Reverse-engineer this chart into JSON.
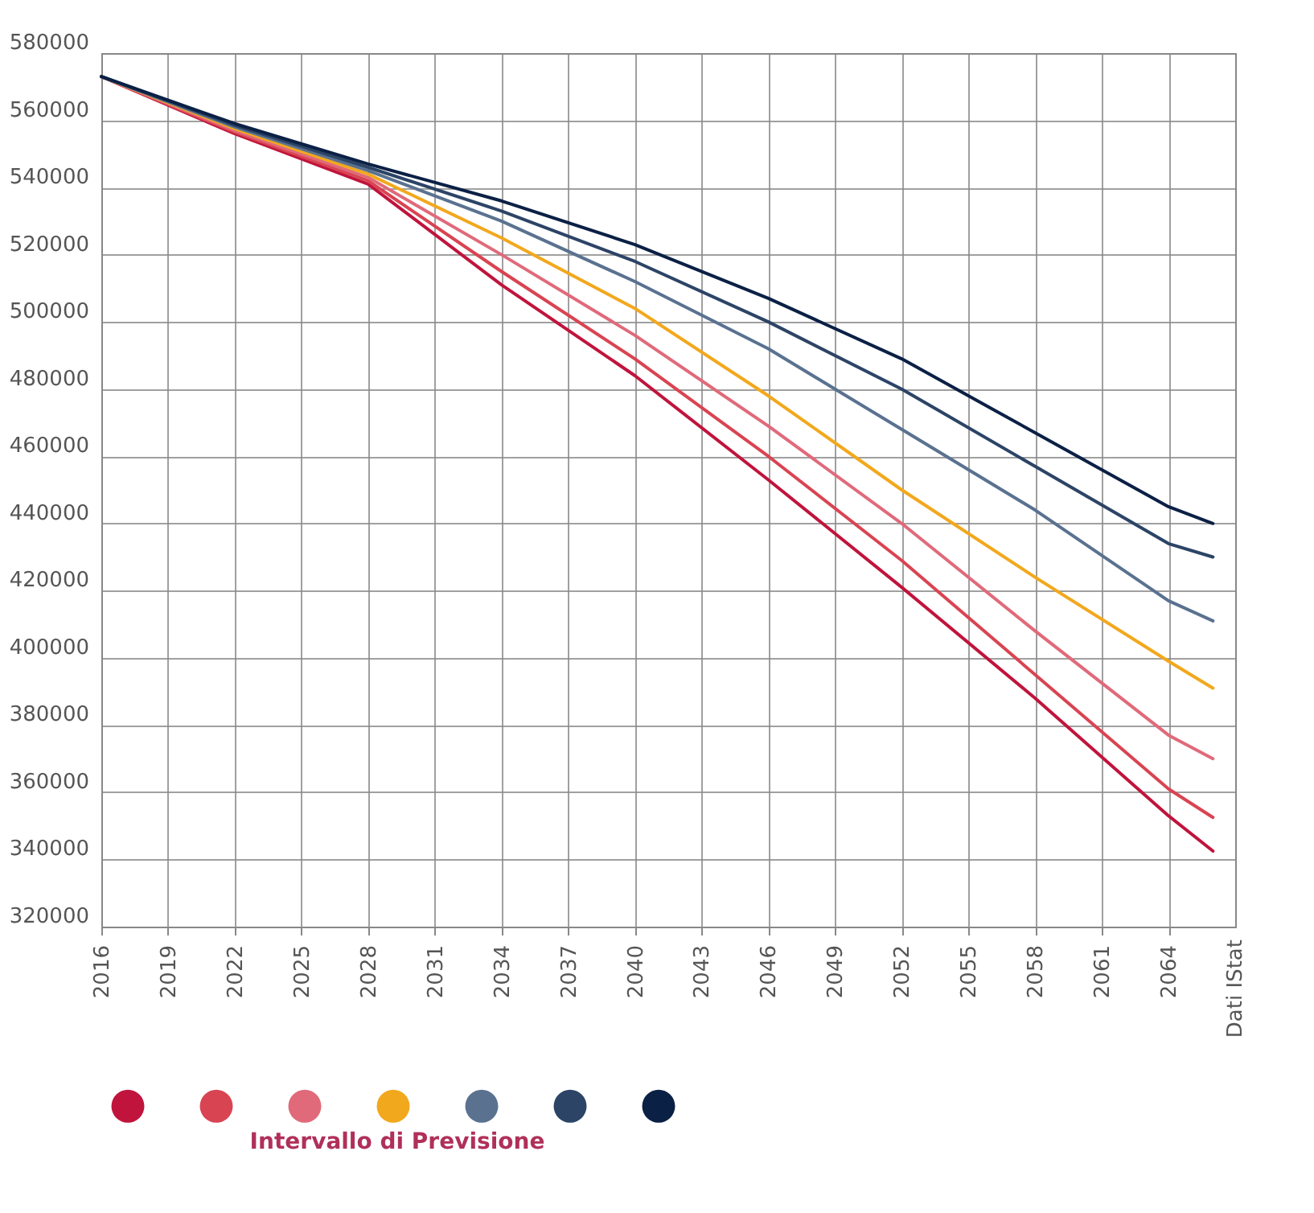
{
  "chart_data": {
    "type": "line",
    "legend_title": "Intervallo di Previsione",
    "annotations": [
      "Dati IStat"
    ],
    "x": [
      2016,
      2022,
      2028,
      2034,
      2040,
      2046,
      2052,
      2058,
      2064,
      2066
    ],
    "xlim": [
      2016,
      2067
    ],
    "xticks": [
      2016,
      2019,
      2022,
      2025,
      2028,
      2031,
      2034,
      2037,
      2040,
      2043,
      2046,
      2049,
      2052,
      2055,
      2058,
      2061,
      2064
    ],
    "ylim": [
      320000,
      580000
    ],
    "yticks": [
      320000,
      340000,
      360000,
      380000,
      400000,
      420000,
      440000,
      460000,
      480000,
      500000,
      520000,
      540000,
      560000,
      580000
    ],
    "grid": true,
    "series": [
      {
        "color": "#c0143c",
        "values": [
          573000,
          556000,
          541000,
          511000,
          484000,
          453000,
          421000,
          388000,
          353000,
          342500
        ]
      },
      {
        "color": "#d94452",
        "values": [
          573000,
          556500,
          542000,
          515000,
          489000,
          460000,
          429000,
          395000,
          361000,
          352500
        ]
      },
      {
        "color": "#e06a7a",
        "values": [
          573000,
          557000,
          543000,
          520000,
          496000,
          469000,
          440000,
          408000,
          377000,
          370000
        ]
      },
      {
        "color": "#f2a81d",
        "values": [
          573000,
          557500,
          544000,
          525000,
          504000,
          478000,
          450000,
          424000,
          399000,
          391000
        ]
      },
      {
        "color": "#5a7290",
        "values": [
          573000,
          558000,
          545000,
          530000,
          512000,
          492000,
          468000,
          444000,
          417000,
          411000
        ]
      },
      {
        "color": "#2c4466",
        "values": [
          573000,
          558500,
          546000,
          533000,
          518000,
          500000,
          480000,
          457000,
          434000,
          430000
        ]
      },
      {
        "color": "#0b2045",
        "values": [
          573000,
          559000,
          547000,
          536000,
          523000,
          507000,
          489000,
          467000,
          445000,
          440000
        ]
      }
    ]
  }
}
